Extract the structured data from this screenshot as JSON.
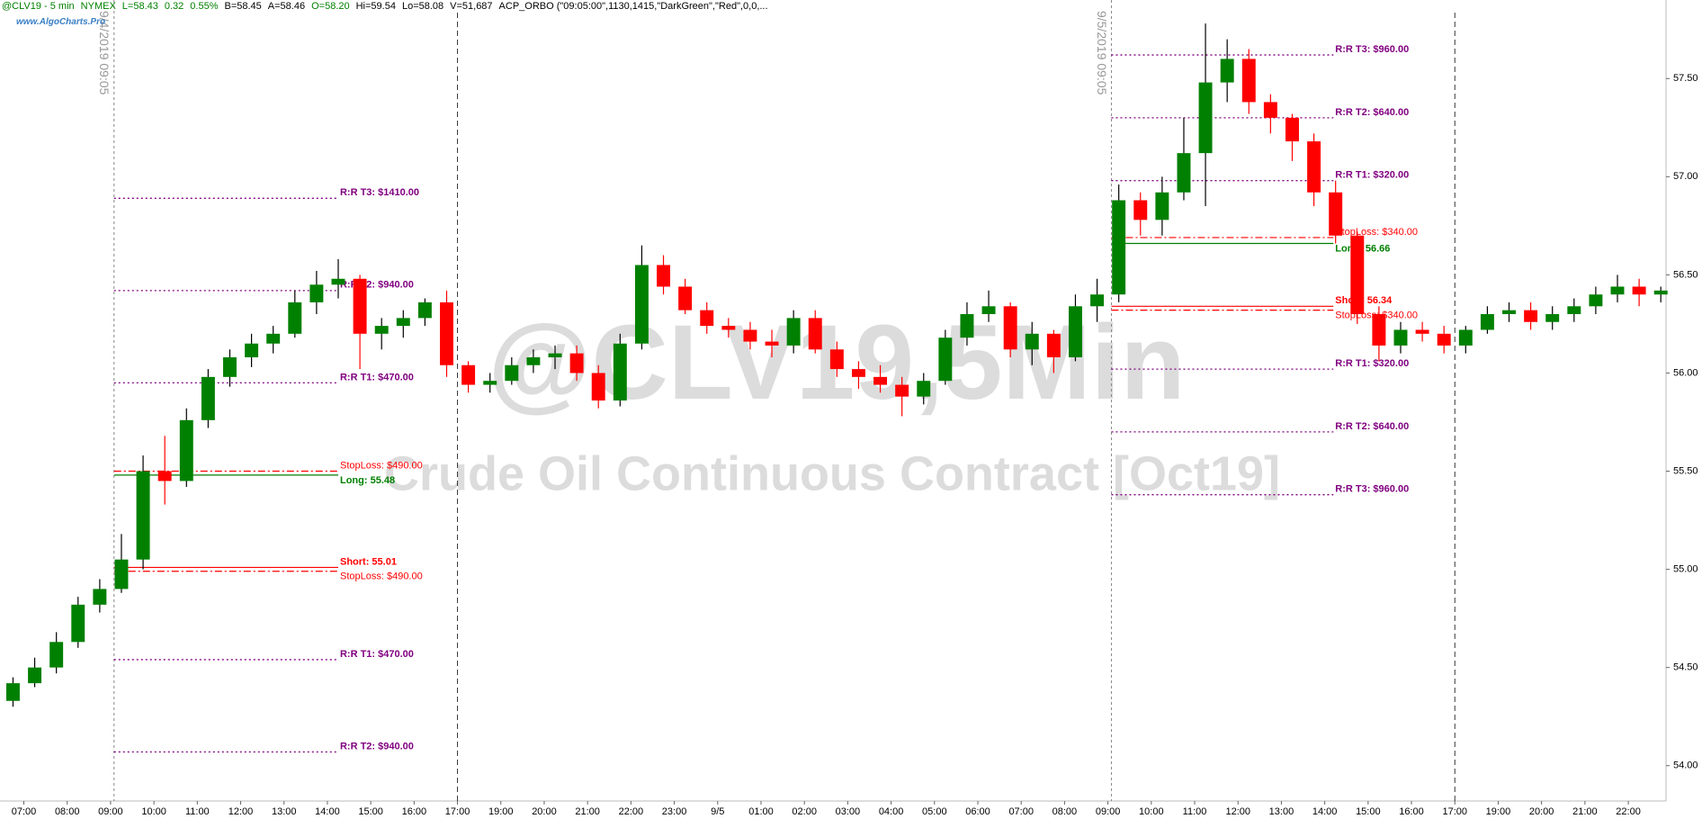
{
  "chart_data": {
    "type": "candlestick",
    "header": [
      {
        "text": "@CLV19 - 5 min",
        "color": "#008000"
      },
      {
        "text": "NYMEX",
        "color": "#008000"
      },
      {
        "text": "L=58.43",
        "color": "#008000"
      },
      {
        "text": "0.32",
        "color": "#008000"
      },
      {
        "text": "0.55%",
        "color": "#008000"
      },
      {
        "text": "B=58.45",
        "color": "#000000"
      },
      {
        "text": "A=58.46",
        "color": "#000000"
      },
      {
        "text": "O=58.20",
        "color": "#008000"
      },
      {
        "text": "Hi=59.54",
        "color": "#000000"
      },
      {
        "text": "Lo=58.08",
        "color": "#000000"
      },
      {
        "text": "V=51,687",
        "color": "#000000"
      },
      {
        "text": "ACP_ORBO (\"09:05:00\",1130,1415,\"DarkGreen\",\"Red\",0,0,...",
        "color": "#000000"
      }
    ],
    "site": "www.AlgoCharts.Pro",
    "watermark": [
      "@CLV19,5Min",
      "Crude Oil Continuous Contract [Oct19]"
    ],
    "up_color": "#008000",
    "down_color": "#ff0000",
    "x": [
      -0.25,
      0.25,
      0.75,
      1.25,
      1.75,
      2.25,
      2.75,
      3.25,
      3.75,
      4.25,
      4.75,
      5.25,
      5.75,
      6.25,
      6.75,
      7.25,
      7.75,
      8.25,
      8.75,
      9.25,
      9.75,
      10.25,
      10.75,
      11.25,
      11.75,
      12.25,
      12.75,
      13.25,
      13.75,
      14.25,
      14.75,
      15.25,
      15.75,
      16.25,
      16.75,
      17.25,
      17.75,
      18.25,
      18.75,
      19.25,
      19.75,
      20.25,
      20.75,
      21.25,
      21.75,
      22.25,
      22.75,
      23.25,
      23.75,
      24.25,
      24.75,
      25.25,
      25.75,
      26.25,
      26.75,
      27.25,
      27.75,
      28.25,
      28.75,
      29.25,
      29.75,
      30.25,
      30.75,
      31.25,
      31.75,
      32.25,
      32.75,
      33.25,
      33.75,
      34.25,
      34.75,
      35.25,
      35.75,
      36.25,
      36.75,
      37.25,
      37.75
    ],
    "open": [
      54.33,
      54.42,
      54.5,
      54.63,
      54.82,
      54.9,
      55.05,
      55.5,
      55.45,
      55.76,
      55.98,
      56.08,
      56.15,
      56.2,
      56.36,
      56.45,
      56.48,
      56.2,
      56.24,
      56.28,
      56.36,
      56.04,
      55.94,
      55.96,
      56.04,
      56.08,
      56.1,
      56.0,
      55.86,
      56.15,
      56.55,
      56.44,
      56.32,
      56.24,
      56.22,
      56.16,
      56.14,
      56.28,
      56.12,
      56.02,
      55.98,
      55.94,
      55.88,
      55.96,
      56.18,
      56.3,
      56.34,
      56.12,
      56.2,
      56.08,
      56.34,
      56.4,
      56.88,
      56.78,
      56.92,
      57.12,
      57.48,
      57.6,
      57.38,
      57.3,
      57.18,
      56.92,
      56.7,
      56.3,
      56.14,
      56.22,
      56.2,
      56.14,
      56.22,
      56.3,
      56.32,
      56.26,
      56.3,
      56.34,
      56.4,
      56.44,
      56.4
    ],
    "high": [
      54.45,
      54.55,
      54.68,
      54.86,
      54.95,
      55.18,
      55.58,
      55.68,
      55.82,
      56.02,
      56.12,
      56.2,
      56.24,
      56.42,
      56.52,
      56.58,
      56.5,
      56.28,
      56.32,
      56.38,
      56.42,
      56.06,
      56.0,
      56.08,
      56.12,
      56.14,
      56.14,
      56.04,
      56.2,
      56.65,
      56.6,
      56.48,
      56.36,
      56.28,
      56.26,
      56.22,
      56.32,
      56.32,
      56.16,
      56.06,
      56.04,
      55.98,
      56.0,
      56.22,
      56.36,
      56.42,
      56.36,
      56.26,
      56.22,
      56.4,
      56.48,
      56.96,
      56.92,
      57.0,
      57.3,
      57.78,
      57.7,
      57.65,
      57.42,
      57.32,
      57.22,
      56.98,
      56.72,
      56.34,
      56.26,
      56.26,
      56.24,
      56.24,
      56.34,
      56.36,
      56.36,
      56.34,
      56.38,
      56.44,
      56.5,
      56.48,
      56.44
    ],
    "low": [
      54.3,
      54.4,
      54.47,
      54.6,
      54.78,
      54.88,
      55.0,
      55.33,
      55.42,
      55.72,
      55.93,
      56.03,
      56.1,
      56.18,
      56.3,
      56.38,
      56.02,
      56.12,
      56.18,
      56.24,
      55.98,
      55.9,
      55.9,
      55.94,
      56.0,
      56.02,
      55.96,
      55.82,
      55.83,
      56.12,
      56.4,
      56.3,
      56.2,
      56.18,
      56.12,
      56.08,
      56.1,
      56.1,
      55.98,
      55.92,
      55.9,
      55.78,
      55.84,
      55.94,
      56.14,
      56.26,
      56.08,
      56.04,
      56.0,
      56.06,
      56.26,
      56.36,
      56.7,
      56.7,
      56.88,
      56.85,
      57.38,
      57.32,
      57.22,
      57.08,
      56.85,
      56.66,
      56.25,
      56.06,
      56.1,
      56.16,
      56.1,
      56.1,
      56.2,
      56.26,
      56.22,
      56.22,
      56.26,
      56.3,
      56.36,
      56.34,
      56.36
    ],
    "close": [
      54.42,
      54.5,
      54.63,
      54.82,
      54.9,
      55.05,
      55.5,
      55.45,
      55.76,
      55.98,
      56.08,
      56.15,
      56.2,
      56.36,
      56.45,
      56.48,
      56.2,
      56.24,
      56.28,
      56.36,
      56.04,
      55.94,
      55.96,
      56.04,
      56.08,
      56.1,
      56.0,
      55.86,
      56.15,
      56.55,
      56.44,
      56.32,
      56.24,
      56.22,
      56.16,
      56.14,
      56.28,
      56.12,
      56.02,
      55.98,
      55.94,
      55.88,
      55.96,
      56.18,
      56.3,
      56.34,
      56.12,
      56.2,
      56.08,
      56.34,
      56.4,
      56.88,
      56.78,
      56.92,
      57.12,
      57.48,
      57.6,
      57.38,
      57.3,
      57.18,
      56.92,
      56.7,
      56.3,
      56.14,
      56.22,
      56.2,
      56.14,
      56.22,
      56.3,
      56.32,
      56.26,
      56.3,
      56.34,
      56.4,
      56.44,
      56.4,
      56.42
    ],
    "xlim": [
      -0.55,
      37.87
    ],
    "xticks": [
      {
        "value": 0,
        "label": "07:00"
      },
      {
        "value": 1,
        "label": "08:00"
      },
      {
        "value": 2,
        "label": "09:00"
      },
      {
        "value": 3,
        "label": "10:00"
      },
      {
        "value": 4,
        "label": "11:00"
      },
      {
        "value": 5,
        "label": "12:00"
      },
      {
        "value": 6,
        "label": "13:00"
      },
      {
        "value": 7,
        "label": "14:00"
      },
      {
        "value": 8,
        "label": "15:00"
      },
      {
        "value": 9,
        "label": "16:00"
      },
      {
        "value": 10,
        "label": "17:00"
      },
      {
        "value": 11,
        "label": "19:00"
      },
      {
        "value": 12,
        "label": "20:00"
      },
      {
        "value": 13,
        "label": "21:00"
      },
      {
        "value": 14,
        "label": "22:00"
      },
      {
        "value": 15,
        "label": "23:00"
      },
      {
        "value": 16,
        "label": "9/5"
      },
      {
        "value": 17,
        "label": "01:00"
      },
      {
        "value": 18,
        "label": "02:00"
      },
      {
        "value": 19,
        "label": "03:00"
      },
      {
        "value": 20,
        "label": "04:00"
      },
      {
        "value": 21,
        "label": "05:00"
      },
      {
        "value": 22,
        "label": "06:00"
      },
      {
        "value": 23,
        "label": "07:00"
      },
      {
        "value": 24,
        "label": "08:00"
      },
      {
        "value": 25,
        "label": "09:00"
      },
      {
        "value": 26,
        "label": "10:00"
      },
      {
        "value": 27,
        "label": "11:00"
      },
      {
        "value": 28,
        "label": "12:00"
      },
      {
        "value": 29,
        "label": "13:00"
      },
      {
        "value": 30,
        "label": "14:00"
      },
      {
        "value": 31,
        "label": "15:00"
      },
      {
        "value": 32,
        "label": "16:00"
      },
      {
        "value": 33,
        "label": "17:00"
      },
      {
        "value": 34,
        "label": "19:00"
      },
      {
        "value": 35,
        "label": "20:00"
      },
      {
        "value": 36,
        "label": "21:00"
      },
      {
        "value": 37,
        "label": "22:00"
      }
    ],
    "ylim": [
      53.82,
      57.9
    ],
    "yticks": [
      {
        "value": 54,
        "label": "54.00"
      },
      {
        "value": 54.5,
        "label": "54.50"
      },
      {
        "value": 55,
        "label": "55.00"
      },
      {
        "value": 55.5,
        "label": "55.50"
      },
      {
        "value": 56,
        "label": "56.00"
      },
      {
        "value": 56.5,
        "label": "56.50"
      },
      {
        "value": 57,
        "label": "57.00"
      },
      {
        "value": 57.5,
        "label": "57.50"
      }
    ],
    "session_open_lines": [
      {
        "x": 2.08,
        "label": "9/4/2019 09:05"
      },
      {
        "x": 25.08,
        "label": "9/5/2019 09:05"
      }
    ],
    "session_close_lines": [
      10,
      33
    ],
    "level_colors": {
      "target": "#800080",
      "stop": "#ff0000",
      "long": "#008000",
      "short": "#ff0000"
    },
    "levels": [
      {
        "kind": "target",
        "value": 56.89,
        "x": [
          2.08,
          7.25
        ],
        "label": "R:R T3: $1410.00"
      },
      {
        "kind": "target",
        "value": 56.42,
        "x": [
          2.08,
          7.25
        ],
        "label": "R:R T2: $940.00"
      },
      {
        "kind": "target",
        "value": 55.95,
        "x": [
          2.08,
          7.25
        ],
        "label": "R:R T1: $470.00"
      },
      {
        "kind": "stop",
        "value": 55.5,
        "x": [
          2.08,
          7.25
        ],
        "label": "StopLoss: $490.00"
      },
      {
        "kind": "long",
        "value": 55.48,
        "x": [
          2.08,
          7.25
        ],
        "label": "Long: 55.48"
      },
      {
        "kind": "short",
        "value": 55.01,
        "x": [
          2.08,
          7.25
        ],
        "label": "Short: 55.01"
      },
      {
        "kind": "stop",
        "value": 54.99,
        "x": [
          2.08,
          7.25
        ],
        "label": "StopLoss: $490.00"
      },
      {
        "kind": "target",
        "value": 54.54,
        "x": [
          2.08,
          7.25
        ],
        "label": "R:R T1: $470.00"
      },
      {
        "kind": "target",
        "value": 54.07,
        "x": [
          2.08,
          7.25
        ],
        "label": "R:R T2: $940.00"
      },
      {
        "kind": "target",
        "value": 57.62,
        "x": [
          25.08,
          30.2
        ],
        "label": "R:R T3: $960.00"
      },
      {
        "kind": "target",
        "value": 57.3,
        "x": [
          25.08,
          30.2
        ],
        "label": "R:R T2: $640.00"
      },
      {
        "kind": "target",
        "value": 56.98,
        "x": [
          25.08,
          30.2
        ],
        "label": "R:R T1: $320.00"
      },
      {
        "kind": "stop",
        "value": 56.69,
        "x": [
          25.08,
          30.2
        ],
        "label": "StopLoss: $340.00"
      },
      {
        "kind": "long",
        "value": 56.66,
        "x": [
          25.08,
          30.2
        ],
        "label": "Long: 56.66"
      },
      {
        "kind": "short",
        "value": 56.34,
        "x": [
          25.08,
          30.2
        ],
        "label": "Short: 56.34"
      },
      {
        "kind": "stop",
        "value": 56.32,
        "x": [
          25.08,
          30.2
        ],
        "label": "StopLoss: $340.00"
      },
      {
        "kind": "target",
        "value": 56.02,
        "x": [
          25.08,
          30.2
        ],
        "label": "R:R T1: $320.00"
      },
      {
        "kind": "target",
        "value": 55.7,
        "x": [
          25.08,
          30.2
        ],
        "label": "R:R T2: $640.00"
      },
      {
        "kind": "target",
        "value": 55.38,
        "x": [
          25.08,
          30.2
        ],
        "label": "R:R T3: $960.00"
      }
    ]
  }
}
